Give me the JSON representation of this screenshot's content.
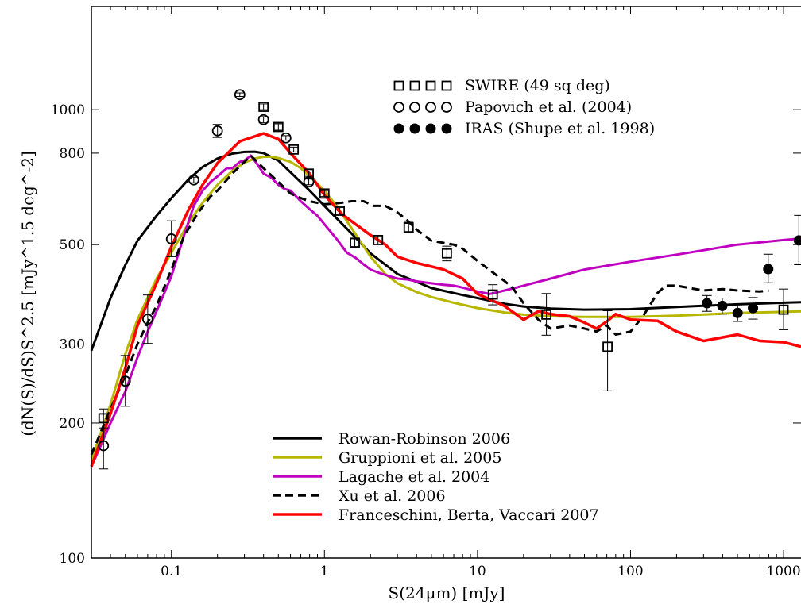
{
  "chart_data": {
    "type": "line",
    "xlabel": "S(24μm) [mJy]",
    "ylabel": "(dN(S)/dS)S^2.5 [mJy^1.5 deg^-2]",
    "xscale": "log",
    "yscale": "log",
    "xlim": [
      0.03,
      1300
    ],
    "ylim": [
      100,
      1700
    ],
    "grid": false,
    "x_tick_labels": [
      "0.1",
      "1",
      "10",
      "100",
      "1000"
    ],
    "x_tick_values": [
      0.1,
      1,
      10,
      100,
      1000
    ],
    "y_tick_labels": [
      "100",
      "200",
      "300",
      "500",
      "800",
      "1000"
    ],
    "y_tick_values": [
      100,
      200,
      300,
      500,
      800,
      1000
    ],
    "legend_points_position": "top-right",
    "legend_lines_position": "bottom-center",
    "point_series": [
      {
        "name": "SWIRE (49 sq deg)",
        "marker": "square-open",
        "points": [
          {
            "x": 0.036,
            "y": 205,
            "err": [
              10,
              10
            ]
          },
          {
            "x": 0.4,
            "y": 1015,
            "err": [
              15,
              15
            ]
          },
          {
            "x": 0.5,
            "y": 915,
            "err": [
              15,
              15
            ]
          },
          {
            "x": 0.63,
            "y": 815,
            "err": [
              10,
              10
            ]
          },
          {
            "x": 0.79,
            "y": 720,
            "err": [
              10,
              10
            ]
          },
          {
            "x": 1.0,
            "y": 650,
            "err": [
              10,
              10
            ]
          },
          {
            "x": 1.26,
            "y": 595,
            "err": [
              10,
              10
            ]
          },
          {
            "x": 1.58,
            "y": 505,
            "err": [
              10,
              10
            ]
          },
          {
            "x": 2.24,
            "y": 512,
            "err": [
              12,
              12
            ]
          },
          {
            "x": 3.55,
            "y": 546,
            "err": [
              15,
              15
            ]
          },
          {
            "x": 6.31,
            "y": 478,
            "err": [
              18,
              18
            ]
          },
          {
            "x": 12.6,
            "y": 387,
            "err": [
              20,
              20
            ]
          },
          {
            "x": 28.2,
            "y": 349,
            "err": [
              35,
              40
            ]
          },
          {
            "x": 70.8,
            "y": 296,
            "err": [
              60,
              60
            ]
          },
          {
            "x": 1000,
            "y": 358,
            "err": [
              35,
              40
            ]
          }
        ]
      },
      {
        "name": "Papovich et al. (2004)",
        "marker": "circle-open",
        "points": [
          {
            "x": 0.036,
            "y": 178,
            "err": [
              20,
              20
            ]
          },
          {
            "x": 0.05,
            "y": 248,
            "err": [
              30,
              35
            ]
          },
          {
            "x": 0.07,
            "y": 341,
            "err": [
              40,
              45
            ]
          },
          {
            "x": 0.1,
            "y": 515,
            "err": [
              45,
              50
            ]
          },
          {
            "x": 0.14,
            "y": 697,
            "err": [
              10,
              10
            ]
          },
          {
            "x": 0.2,
            "y": 897,
            "err": [
              30,
              30
            ]
          },
          {
            "x": 0.28,
            "y": 1080,
            "err": [
              10,
              10
            ]
          },
          {
            "x": 0.4,
            "y": 950,
            "err": [
              15,
              15
            ]
          },
          {
            "x": 0.56,
            "y": 865,
            "err": [
              10,
              10
            ]
          },
          {
            "x": 0.79,
            "y": 690,
            "err": [
              10,
              10
            ]
          }
        ]
      },
      {
        "name": "IRAS (Shupe et al. 1998)",
        "marker": "circle-filled",
        "points": [
          {
            "x": 316,
            "y": 370,
            "err": [
              15,
              15
            ]
          },
          {
            "x": 398,
            "y": 365,
            "err": [
              15,
              15
            ]
          },
          {
            "x": 501,
            "y": 352,
            "err": [
              15,
              15
            ]
          },
          {
            "x": 631,
            "y": 361,
            "err": [
              20,
              20
            ]
          },
          {
            "x": 794,
            "y": 441,
            "err": [
              30,
              35
            ]
          },
          {
            "x": 1259,
            "y": 511,
            "err": [
              60,
              70
            ]
          }
        ]
      }
    ],
    "series": [
      {
        "name": "Rowan-Robinson 2006",
        "color": "#000000",
        "style": "solid",
        "x": [
          0.03,
          0.04,
          0.05,
          0.06,
          0.08,
          0.1,
          0.13,
          0.16,
          0.2,
          0.25,
          0.3,
          0.35,
          0.4,
          0.5,
          0.6,
          0.8,
          1.0,
          1.5,
          2.0,
          3.0,
          5.0,
          8.0,
          10,
          15,
          20,
          30,
          50,
          100,
          200,
          500,
          1000,
          1300
        ],
        "y": [
          290,
          380,
          450,
          510,
          580,
          635,
          700,
          745,
          778,
          798,
          805,
          806,
          800,
          770,
          725,
          660,
          610,
          530,
          478,
          430,
          400,
          386,
          380,
          369,
          364,
          360,
          358,
          359,
          363,
          368,
          371,
          372
        ]
      },
      {
        "name": "Gruppioni et al. 2005",
        "color": "#b7b700",
        "style": "solid",
        "x": [
          0.03,
          0.04,
          0.05,
          0.06,
          0.08,
          0.1,
          0.13,
          0.16,
          0.2,
          0.25,
          0.3,
          0.35,
          0.4,
          0.45,
          0.5,
          0.6,
          0.7,
          0.8,
          1.0,
          1.2,
          1.5,
          2.0,
          2.5,
          3.0,
          4.0,
          5.0,
          7.0,
          10,
          15,
          20,
          30,
          50,
          100,
          200,
          500,
          1000,
          1300
        ],
        "y": [
          165,
          220,
          285,
          340,
          420,
          480,
          560,
          620,
          680,
          730,
          762,
          778,
          785,
          785,
          780,
          765,
          740,
          710,
          660,
          610,
          545,
          470,
          430,
          410,
          392,
          382,
          371,
          361,
          353,
          349,
          346,
          345,
          345,
          347,
          352,
          354,
          355
        ]
      },
      {
        "name": "Lagache et al. 2004",
        "color": "#c000c0",
        "style": "solid",
        "x": [
          0.03,
          0.035,
          0.04,
          0.05,
          0.06,
          0.07,
          0.08,
          0.1,
          0.12,
          0.14,
          0.16,
          0.18,
          0.2,
          0.23,
          0.25,
          0.28,
          0.3,
          0.33,
          0.36,
          0.4,
          0.45,
          0.5,
          0.55,
          0.6,
          0.7,
          0.8,
          0.9,
          1.0,
          1.2,
          1.4,
          1.6,
          1.8,
          2.0,
          2.3,
          2.6,
          3.0,
          3.5,
          4.0,
          5.0,
          6.0,
          7.0,
          8.0,
          10,
          12,
          15,
          20,
          30,
          50,
          100,
          200,
          500,
          1000,
          1300
        ],
        "y": [
          160,
          180,
          200,
          235,
          280,
          320,
          355,
          425,
          520,
          610,
          660,
          690,
          710,
          740,
          740,
          765,
          770,
          790,
          760,
          720,
          705,
          680,
          665,
          660,
          625,
          600,
          580,
          555,
          515,
          480,
          467,
          452,
          440,
          432,
          426,
          420,
          418,
          414,
          410,
          407,
          405,
          401,
          393,
          388,
          395,
          405,
          420,
          440,
          458,
          475,
          500,
          512,
          516
        ]
      },
      {
        "name": "Xu et al. 2006",
        "color": "#000000",
        "style": "dashed",
        "x": [
          0.03,
          0.04,
          0.05,
          0.06,
          0.07,
          0.08,
          0.1,
          0.12,
          0.15,
          0.18,
          0.2,
          0.25,
          0.3,
          0.33,
          0.4,
          0.5,
          0.6,
          0.7,
          0.8,
          1.0,
          1.3,
          1.5,
          1.8,
          2.1,
          2.5,
          3.0,
          3.5,
          4.0,
          5.0,
          7.0,
          8.0,
          10,
          13,
          15,
          17,
          20,
          25,
          30,
          40,
          50,
          60,
          70,
          80,
          100,
          120,
          150,
          170,
          200,
          300,
          400,
          500,
          700,
          800
        ],
        "y": [
          170,
          215,
          255,
          300,
          335,
          365,
          440,
          520,
          590,
          640,
          660,
          720,
          765,
          790,
          740,
          690,
          650,
          635,
          625,
          615,
          620,
          625,
          625,
          610,
          610,
          590,
          565,
          540,
          510,
          500,
          490,
          460,
          430,
          415,
          400,
          370,
          340,
          325,
          330,
          325,
          320,
          330,
          315,
          320,
          345,
          390,
          405,
          405,
          395,
          398,
          395,
          393,
          395
        ]
      },
      {
        "name": "Franceschini, Berta, Vaccari 2007",
        "color": "#ff0000",
        "style": "solid",
        "x": [
          0.03,
          0.04,
          0.05,
          0.06,
          0.08,
          0.1,
          0.13,
          0.16,
          0.2,
          0.28,
          0.4,
          0.5,
          0.6,
          0.8,
          1.0,
          1.3,
          1.6,
          2.0,
          2.5,
          3.0,
          4.0,
          6.0,
          8.0,
          10,
          15,
          20,
          25,
          30,
          40,
          50,
          60,
          70,
          80,
          100,
          150,
          200,
          300,
          500,
          700,
          1000,
          1300
        ],
        "y": [
          160,
          210,
          265,
          330,
          410,
          495,
          600,
          680,
          760,
          850,
          885,
          860,
          800,
          720,
          645,
          585,
          555,
          525,
          500,
          470,
          455,
          440,
          420,
          388,
          365,
          340,
          355,
          350,
          346,
          335,
          325,
          337,
          350,
          340,
          338,
          320,
          305,
          315,
          305,
          303,
          296
        ]
      }
    ]
  }
}
